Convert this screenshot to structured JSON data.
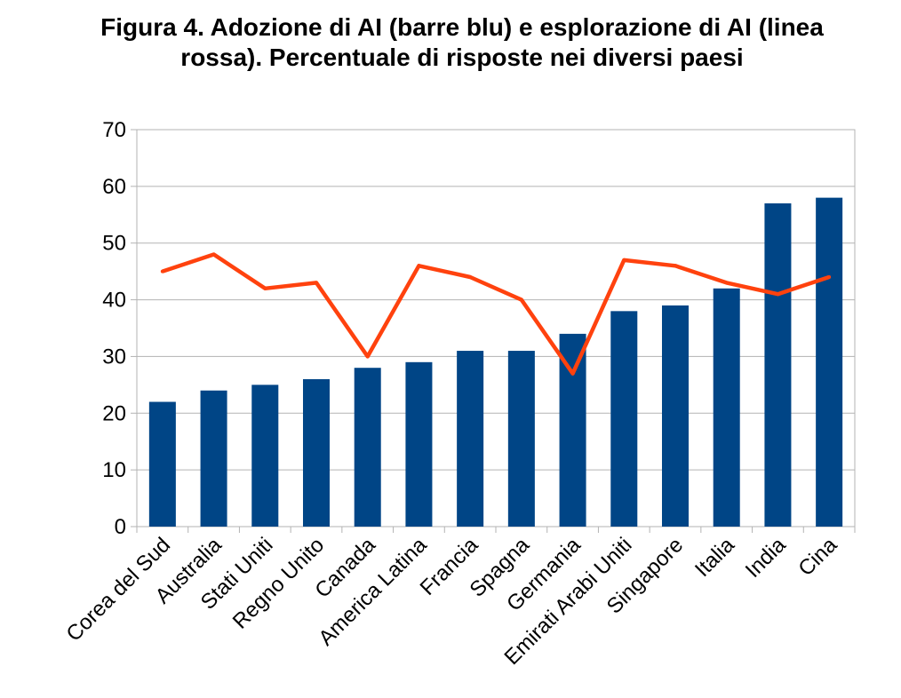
{
  "chart_data": {
    "type": "bar",
    "title": "Figura 4. Adozione di AI (barre blu) e esplorazione di AI (linea rossa). Percentuale di risposte nei diversi paesi",
    "categories": [
      "Corea del Sud",
      "Australia",
      "Stati Uniti",
      "Regno Unito",
      "Canada",
      "America Latina",
      "Francia",
      "Spagna",
      "Germania",
      "Emirati Arabi Uniti",
      "Singapore",
      "Italia",
      "India",
      "Cina"
    ],
    "series": [
      {
        "type": "bar",
        "color": "#004586",
        "values": [
          22,
          24,
          25,
          26,
          28,
          29,
          31,
          31,
          34,
          38,
          39,
          42,
          57,
          58
        ]
      },
      {
        "type": "line",
        "color": "#ff420e",
        "values": [
          45,
          48,
          42,
          43,
          30,
          46,
          44,
          40,
          27,
          47,
          46,
          43,
          41,
          44
        ]
      }
    ],
    "ylim": [
      0,
      70
    ],
    "yticks": [
      0,
      10,
      20,
      30,
      40,
      50,
      60,
      70
    ],
    "grid": true,
    "legend": "none"
  }
}
